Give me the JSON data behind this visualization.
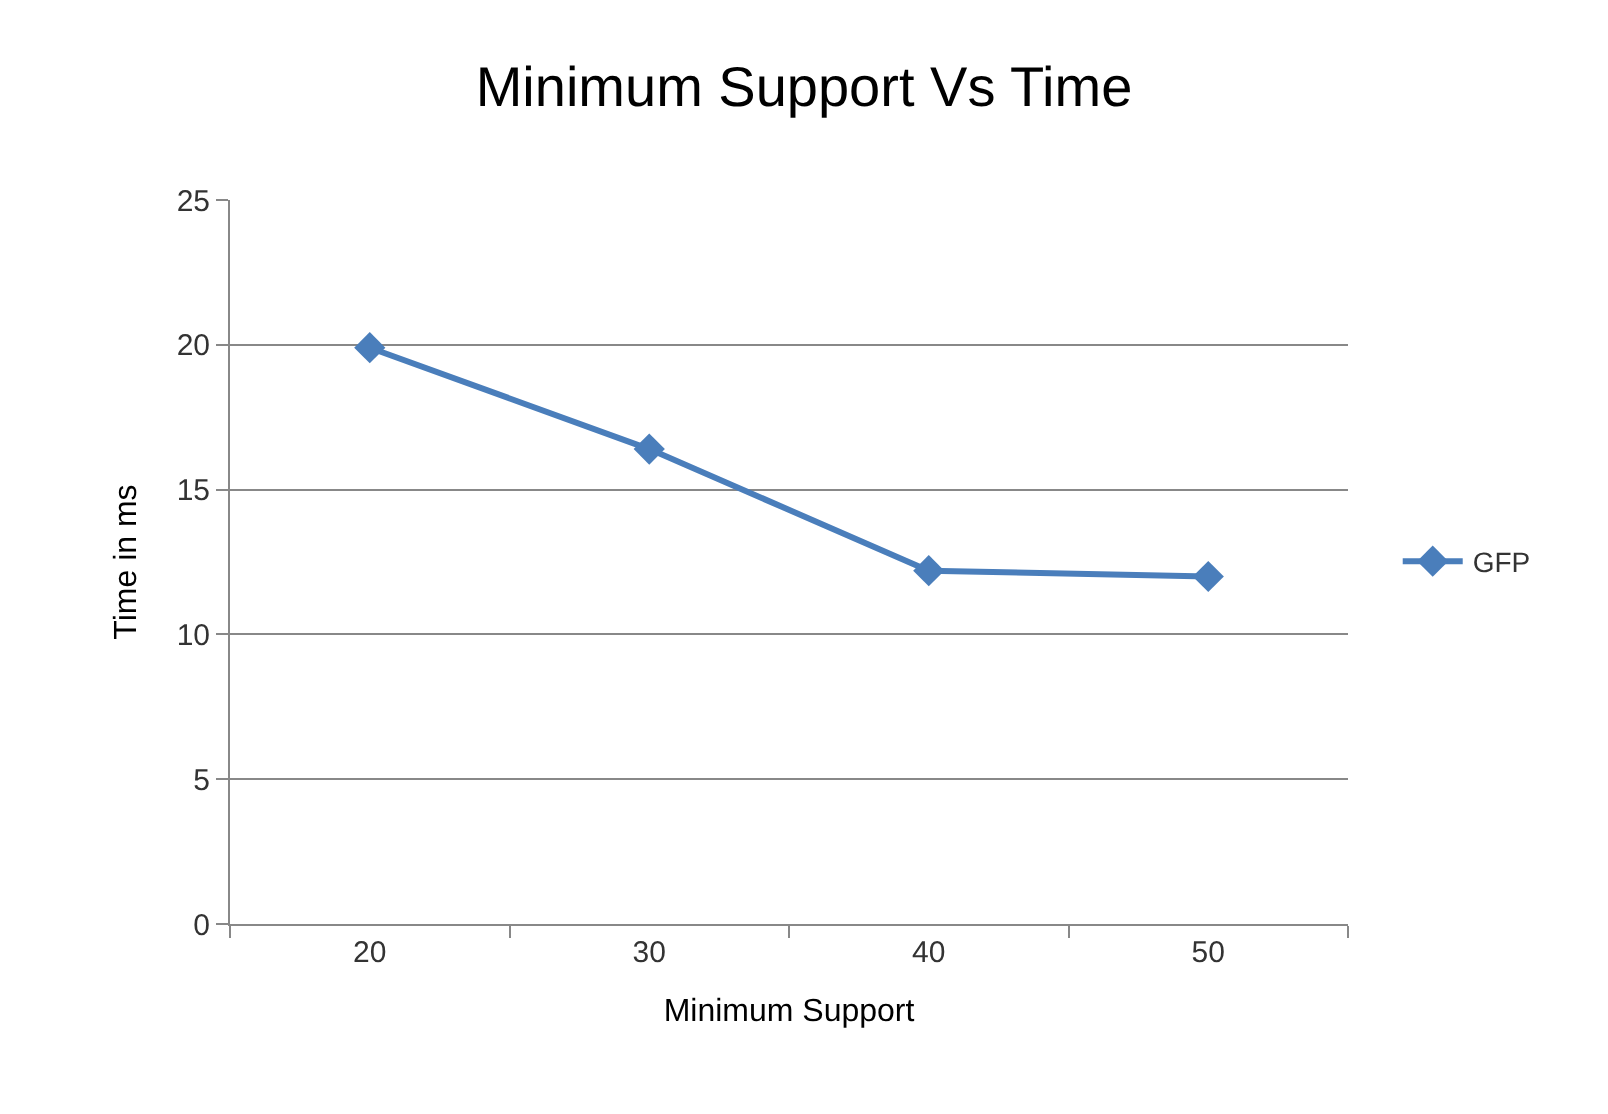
{
  "chart_data": {
    "type": "line",
    "title": "Minimum Support Vs Time",
    "xlabel": "Minimum Support",
    "ylabel": "Time in ms",
    "categories": [
      "20",
      "30",
      "40",
      "50"
    ],
    "series": [
      {
        "name": "GFP",
        "color": "#4a7ebb",
        "values": [
          19.9,
          16.4,
          12.2,
          12.0
        ]
      }
    ],
    "ylim": [
      0,
      25
    ],
    "yticks": [
      0,
      5,
      10,
      15,
      20,
      25
    ],
    "grid": "y",
    "legend": "right",
    "marker": "diamond",
    "line_style": "solid"
  }
}
